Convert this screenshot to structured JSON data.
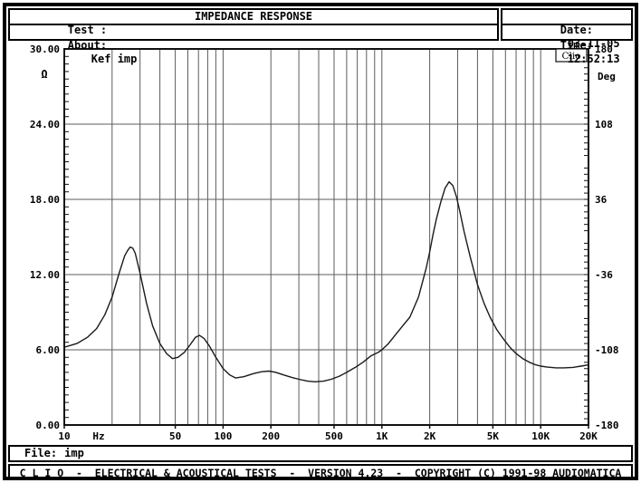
{
  "header": {
    "test_label": "Test :",
    "title": "IMPEDANCE RESPONSE",
    "about_label": "About:",
    "about_value": "Kef imp",
    "date_label": "Date:",
    "date_value": "03-11-05",
    "time_label": "Time:",
    "time_value": "12:52:13"
  },
  "file_bar": {
    "label": "File:",
    "value": "imp"
  },
  "credits_bar": {
    "text": "C L I O  -  ELECTRICAL & ACOUSTICAL TESTS  -  VERSION 4.23  -  COPYRIGHT (C) 1991-98 AUDIOMATICA"
  },
  "colors": {
    "curve": "#1a1a1a",
    "grid": "#5c5c5c",
    "frame": "#111111",
    "text": "#000000",
    "background": "#ffffff"
  },
  "chart_data": {
    "type": "line",
    "title": "IMPEDANCE RESPONSE",
    "badge": "Clio",
    "grid": true,
    "x_axis": {
      "scale": "log",
      "unit": "Hz",
      "min": 10,
      "max": 20000,
      "tick_values": [
        10,
        50,
        100,
        200,
        500,
        1000,
        2000,
        5000,
        10000,
        20000
      ],
      "tick_labels": [
        "10",
        "50",
        "100",
        "200",
        "500",
        "1K",
        "2K",
        "5K",
        "10K",
        "20K"
      ],
      "gridline_values": [
        20,
        30,
        40,
        50,
        60,
        70,
        80,
        90,
        100,
        200,
        300,
        400,
        500,
        600,
        700,
        800,
        900,
        1000,
        2000,
        3000,
        4000,
        5000,
        6000,
        7000,
        8000,
        9000,
        10000
      ]
    },
    "y_left": {
      "unit": "Ω",
      "min": 0,
      "max": 30,
      "tick_values": [
        30,
        24,
        18,
        12,
        6,
        0
      ],
      "tick_labels": [
        "30.00",
        "24.00",
        "18.00",
        "12.00",
        "6.00",
        "0.00"
      ],
      "gridline_values": [
        6,
        12,
        18,
        24
      ],
      "minor_tick_step": 0.6
    },
    "y_right": {
      "unit": "Deg",
      "min": -180,
      "max": 180,
      "tick_values": [
        180,
        108,
        36,
        -36,
        -108,
        -180
      ],
      "tick_labels": [
        "180",
        "108",
        "36",
        "-36",
        "-108",
        "-180"
      ],
      "minor_tick_step": 6
    },
    "series": [
      {
        "name": "impedance-magnitude",
        "unit_x": "Hz",
        "unit_y": "ohm",
        "points": [
          [
            10,
            6.2
          ],
          [
            12,
            6.5
          ],
          [
            14,
            7.0
          ],
          [
            16,
            7.7
          ],
          [
            18,
            8.8
          ],
          [
            20,
            10.2
          ],
          [
            22,
            12.0
          ],
          [
            24,
            13.5
          ],
          [
            25,
            13.9
          ],
          [
            26,
            14.2
          ],
          [
            27,
            14.1
          ],
          [
            28,
            13.7
          ],
          [
            30,
            12.1
          ],
          [
            33,
            9.7
          ],
          [
            36,
            7.9
          ],
          [
            40,
            6.5
          ],
          [
            44,
            5.7
          ],
          [
            48,
            5.3
          ],
          [
            52,
            5.4
          ],
          [
            57,
            5.8
          ],
          [
            62,
            6.4
          ],
          [
            67,
            7.0
          ],
          [
            71,
            7.15
          ],
          [
            76,
            6.9
          ],
          [
            82,
            6.3
          ],
          [
            90,
            5.4
          ],
          [
            100,
            4.5
          ],
          [
            110,
            4.0
          ],
          [
            120,
            3.75
          ],
          [
            135,
            3.85
          ],
          [
            155,
            4.1
          ],
          [
            175,
            4.25
          ],
          [
            195,
            4.3
          ],
          [
            215,
            4.2
          ],
          [
            240,
            4.0
          ],
          [
            270,
            3.8
          ],
          [
            300,
            3.65
          ],
          [
            340,
            3.5
          ],
          [
            380,
            3.45
          ],
          [
            430,
            3.5
          ],
          [
            480,
            3.65
          ],
          [
            540,
            3.9
          ],
          [
            600,
            4.2
          ],
          [
            680,
            4.6
          ],
          [
            760,
            5.0
          ],
          [
            850,
            5.5
          ],
          [
            950,
            5.8
          ],
          [
            1000,
            6.0
          ],
          [
            1100,
            6.5
          ],
          [
            1200,
            7.1
          ],
          [
            1350,
            7.9
          ],
          [
            1500,
            8.6
          ],
          [
            1700,
            10.2
          ],
          [
            1900,
            12.5
          ],
          [
            2000,
            13.8
          ],
          [
            2100,
            15.2
          ],
          [
            2200,
            16.4
          ],
          [
            2350,
            17.8
          ],
          [
            2500,
            18.9
          ],
          [
            2650,
            19.4
          ],
          [
            2800,
            19.1
          ],
          [
            2950,
            18.2
          ],
          [
            3100,
            17.0
          ],
          [
            3300,
            15.4
          ],
          [
            3600,
            13.4
          ],
          [
            4000,
            11.2
          ],
          [
            4400,
            9.7
          ],
          [
            4800,
            8.6
          ],
          [
            5300,
            7.6
          ],
          [
            5800,
            6.9
          ],
          [
            6400,
            6.2
          ],
          [
            7000,
            5.7
          ],
          [
            7700,
            5.3
          ],
          [
            8500,
            5.0
          ],
          [
            9300,
            4.8
          ],
          [
            10000,
            4.7
          ],
          [
            11000,
            4.62
          ],
          [
            12500,
            4.56
          ],
          [
            14000,
            4.56
          ],
          [
            16000,
            4.6
          ],
          [
            18000,
            4.7
          ],
          [
            20000,
            4.8
          ]
        ]
      }
    ]
  }
}
